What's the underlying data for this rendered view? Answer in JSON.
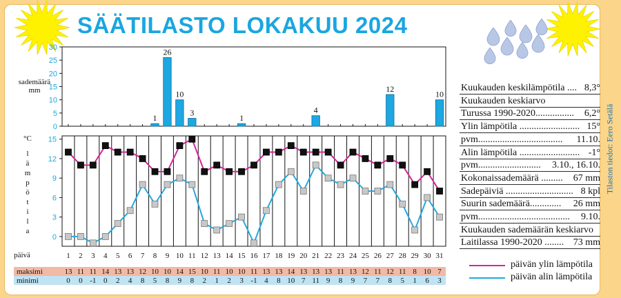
{
  "title": "SÄÄTILASTO LOKAKUU 2024",
  "credit": "Tilaston tiedot: Eero Setälä",
  "precip_axis_label": [
    "sademäärä",
    "mm"
  ],
  "temp_axis_unit": "°C",
  "temp_axis_label": "lämpötila",
  "day_label": "päivä",
  "row_labels": {
    "max": "maksimi",
    "min": "minimi"
  },
  "stats": [
    {
      "label": "Kuukauden keskilämpötila ....",
      "value": "8,3°"
    },
    {
      "label": "Kuukauden keskiarvo",
      "value": ""
    },
    {
      "label": "Turussa 1990-2020................",
      "value": "6,2°"
    },
    {
      "label": "Ylin lämpötila .........................",
      "value": "15°"
    },
    {
      "label": "pvm...................................",
      "value": "11.10."
    },
    {
      "label": "Alin lämpötila .........................",
      "value": "-1°"
    },
    {
      "label": "pvm..........................",
      "value": "3.10., 16.10."
    },
    {
      "label": "Kokonaissademäärä .........",
      "value": "67 mm"
    },
    {
      "label": "Sadepäiviä ............................",
      "value": "8 kpl"
    },
    {
      "label": "Suurin sademäärä.............",
      "value": "26 mm"
    },
    {
      "label": "pvm......................................",
      "value": "9.10."
    },
    {
      "label": "Kuukauden sademäärän keskiarvo",
      "value": ""
    },
    {
      "label": "Laitilassa 1990-2020 ........",
      "value": "73 mm"
    }
  ],
  "legend": {
    "max": "päivän ylin lämpötila",
    "min": "päivän alin lämpötila"
  },
  "colors": {
    "title": "#1aa6e0",
    "bar": "#1ea7e1",
    "max_line": "#d6249a",
    "min_line": "#21a9de",
    "max_marker": "#111111",
    "min_marker": "#c8c8c8",
    "max_row": "#f2b9a4",
    "min_row": "#bfe3f3",
    "frame": "#fbd58a",
    "sun": "#fff200"
  },
  "chart_data": [
    {
      "type": "bar",
      "x": [
        1,
        2,
        3,
        4,
        5,
        6,
        7,
        8,
        9,
        10,
        11,
        12,
        13,
        14,
        15,
        16,
        17,
        18,
        19,
        20,
        21,
        22,
        23,
        24,
        25,
        26,
        27,
        28,
        29,
        30,
        31
      ],
      "values": [
        0,
        0,
        0,
        0,
        0,
        0,
        0,
        1,
        26,
        10,
        3,
        0,
        0,
        0,
        1,
        0,
        0,
        0,
        0,
        0,
        4,
        0,
        0,
        0,
        0,
        0,
        12,
        0,
        0,
        0,
        10
      ],
      "data_labels": {
        "8": "1",
        "9": "26",
        "10": "10",
        "11": "3",
        "15": "1",
        "21": "4",
        "27": "12",
        "31": "10"
      },
      "ylabel": "sademäärä mm",
      "ylim": [
        0,
        30
      ],
      "yticks": [
        0,
        5,
        10,
        15,
        20,
        25,
        30
      ]
    },
    {
      "type": "line",
      "x": [
        1,
        2,
        3,
        4,
        5,
        6,
        7,
        8,
        9,
        10,
        11,
        12,
        13,
        14,
        15,
        16,
        17,
        18,
        19,
        20,
        21,
        22,
        23,
        24,
        25,
        26,
        27,
        28,
        29,
        30,
        31
      ],
      "series": [
        {
          "name": "päivän ylin lämpötila",
          "values": [
            13,
            11,
            11,
            14,
            13,
            13,
            12,
            10,
            10,
            14,
            15,
            10,
            11,
            10,
            10,
            11,
            13,
            13,
            14,
            13,
            13,
            13,
            11,
            13,
            12,
            11,
            12,
            11,
            8,
            10,
            7
          ]
        },
        {
          "name": "päivän alin lämpötila",
          "values": [
            0,
            0,
            -1,
            0,
            2,
            4,
            8,
            5,
            8,
            9,
            8,
            2,
            1,
            2,
            3,
            -1,
            4,
            8,
            10,
            7,
            11,
            9,
            8,
            9,
            7,
            7,
            8,
            5,
            1,
            6,
            3
          ]
        }
      ],
      "xlabel": "päivä",
      "ylabel": "°C lämpötila",
      "ylim": [
        -1.5,
        15.5
      ],
      "yticks": [
        0,
        3,
        6,
        9,
        12,
        15
      ]
    }
  ]
}
